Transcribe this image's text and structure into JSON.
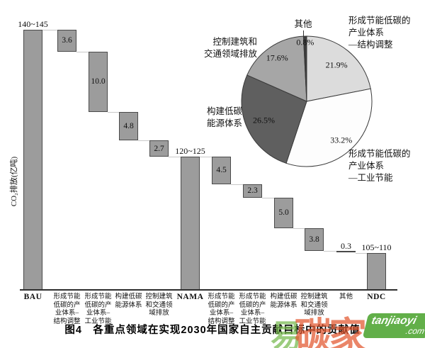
{
  "figure": {
    "caption": "图4　各重点领域在实现2030年国家自主贡献目标中的贡献值",
    "y_axis_label": "CO₂排放(亿吨)"
  },
  "chart_data": [
    {
      "type": "bar",
      "subtype": "waterfall",
      "ylabel": "CO₂排放(亿吨)",
      "unit": "亿吨 CO₂",
      "grid": false,
      "bar_color": "#9c9c9c",
      "bar_border": "#4a4a4a",
      "connector_color": "#c9c9c9",
      "bars": [
        {
          "category": "BAU",
          "kind": "total",
          "range_label": "140~145",
          "value": 142.5
        },
        {
          "category": "形成节能\n低碳的产\n业体系–\n结构调整",
          "kind": "decrease",
          "value": 3.6
        },
        {
          "category": "形成节能\n低碳的产\n业体系–\n工业节能",
          "kind": "decrease",
          "value": 10.0
        },
        {
          "category": "构建低碳\n能源体系",
          "kind": "decrease",
          "value": 4.8
        },
        {
          "category": "控制建筑\n和交通领\n域排放",
          "kind": "decrease",
          "value": 2.7
        },
        {
          "category": "NAMA",
          "kind": "total",
          "range_label": "120~125",
          "value": 122.5
        },
        {
          "category": "形成节能\n低碳的产\n业体系–\n结构调整",
          "kind": "decrease",
          "value": 4.5
        },
        {
          "category": "形成节能\n低碳的产\n业体系–\n工业节能",
          "kind": "decrease",
          "value": 2.3
        },
        {
          "category": "构建低碳\n能源体系",
          "kind": "decrease",
          "value": 5.0
        },
        {
          "category": "控制建筑\n和交通领\n域排放",
          "kind": "decrease",
          "value": 3.8
        },
        {
          "category": "其他",
          "kind": "decrease",
          "value": 0.3
        },
        {
          "category": "NDC",
          "kind": "total",
          "range_label": "105~110",
          "value": 107.5
        }
      ]
    },
    {
      "type": "pie",
      "start_angle": "top",
      "direction": "clockwise",
      "slices": [
        {
          "label": "形成节能低碳的\n产业体系\n—结构调整",
          "value_pct": 21.9,
          "color": "#dcdcdc"
        },
        {
          "label": "形成节能低碳的\n产业体系\n—工业节能",
          "value_pct": 33.2,
          "color": "#fdfdfd"
        },
        {
          "label": "构建低碳\n能源体系",
          "value_pct": 26.5,
          "color": "#5f5f5f"
        },
        {
          "label": "控制建筑和\n交通领域排放",
          "value_pct": 17.6,
          "color": "#a6a6a6"
        },
        {
          "label": "其他",
          "value_pct": 0.8,
          "color": "#3c3c3c"
        }
      ]
    }
  ],
  "watermark": {
    "brand_chars": [
      "易",
      "碳",
      "家"
    ],
    "domain": "tanjiaoyi",
    "tld": ".com"
  }
}
